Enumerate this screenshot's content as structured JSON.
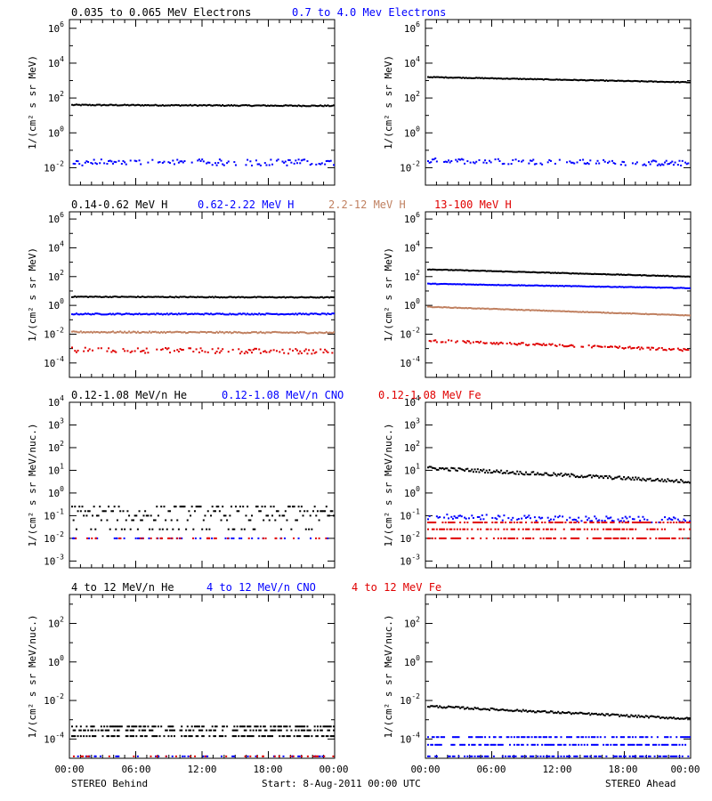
{
  "chart_data": [
    {
      "type": "scatter",
      "panel": "electrons-behind",
      "yscale": "log",
      "ylim_exp": [
        -3,
        6.5
      ],
      "yticks_exp": [
        -2,
        0,
        2,
        4,
        6
      ],
      "ylabel": "1/(cm² s sr MeV)",
      "series": [
        {
          "name": "0.035 to 0.065 MeV Electrons",
          "color": "#000000",
          "log_start": 1.6,
          "log_end": 1.55,
          "noise": 0.03,
          "style": "line"
        },
        {
          "name": "0.7 to 4.0 Mev Electrons",
          "color": "#0000ff",
          "log_start": -1.7,
          "log_end": -1.7,
          "noise": 0.18,
          "style": "scatter"
        }
      ]
    },
    {
      "type": "scatter",
      "panel": "electrons-ahead",
      "yscale": "log",
      "ylim_exp": [
        -3,
        6.5
      ],
      "yticks_exp": [
        -2,
        0,
        2,
        4,
        6
      ],
      "ylabel": "1/(cm² s sr MeV)",
      "series": [
        {
          "color": "#000000",
          "log_start": 3.2,
          "log_end": 2.9,
          "noise": 0.02,
          "style": "line"
        },
        {
          "color": "#0000ff",
          "log_start": -1.6,
          "log_end": -1.75,
          "noise": 0.15,
          "style": "scatter"
        }
      ]
    },
    {
      "type": "scatter",
      "panel": "protons-behind",
      "yscale": "log",
      "ylim_exp": [
        -5,
        6.5
      ],
      "yticks_exp": [
        -4,
        -2,
        0,
        2,
        4,
        6
      ],
      "ylabel": "1/(cm² s sr MeV)",
      "series": [
        {
          "name": "0.14-0.62 MeV H",
          "color": "#000000",
          "log_start": 0.6,
          "log_end": 0.55,
          "noise": 0.03,
          "style": "line"
        },
        {
          "name": "0.62-2.22 MeV H",
          "color": "#0000ff",
          "log_start": -0.6,
          "log_end": -0.6,
          "noise": 0.04,
          "style": "line"
        },
        {
          "name": "2.2-12 MeV H",
          "color": "#c08060",
          "log_start": -1.85,
          "log_end": -1.9,
          "noise": 0.05,
          "style": "line"
        },
        {
          "name": "13-100 MeV H",
          "color": "#e00000",
          "log_start": -3.1,
          "log_end": -3.2,
          "noise": 0.18,
          "style": "scatter"
        }
      ]
    },
    {
      "type": "scatter",
      "panel": "protons-ahead",
      "yscale": "log",
      "ylim_exp": [
        -5,
        6.5
      ],
      "yticks_exp": [
        -4,
        -2,
        0,
        2,
        4,
        6
      ],
      "ylabel": "1/(cm² s sr MeV)",
      "series": [
        {
          "color": "#000000",
          "log_start": 2.5,
          "log_end": 2.0,
          "noise": 0.02,
          "style": "line"
        },
        {
          "color": "#0000ff",
          "log_start": 1.5,
          "log_end": 1.2,
          "noise": 0.02,
          "style": "line"
        },
        {
          "color": "#c08060",
          "log_start": -0.1,
          "log_end": -0.7,
          "noise": 0.02,
          "style": "line"
        },
        {
          "color": "#e00000",
          "log_start": -2.45,
          "log_end": -3.1,
          "noise": 0.08,
          "style": "scatter"
        }
      ]
    },
    {
      "type": "scatter",
      "panel": "heavy-low-behind",
      "yscale": "log",
      "ylim_exp": [
        -3.3,
        4
      ],
      "yticks_exp": [
        -3,
        -2,
        -1,
        0,
        1,
        2,
        3,
        4
      ],
      "ylabel": "1/(cm² s sr MeV/nuc.)",
      "series": [
        {
          "name": "0.12-1.08 MeV/n He",
          "color": "#000000",
          "log_start": -0.9,
          "log_end": -0.9,
          "noise": 0.45,
          "style": "quantized",
          "levels": [
            -1.6,
            -1.2,
            -1.0,
            -0.8,
            -0.6
          ]
        },
        {
          "name": "0.12-1.08 MeV/n CNO",
          "color": "#0000ff",
          "log_start": -2.0,
          "log_end": -2.0,
          "noise": 0.0,
          "style": "sparse"
        },
        {
          "name": "0.12-1.08 MeV Fe",
          "color": "#e00000",
          "log_start": -2.0,
          "log_end": -2.0,
          "noise": 0.0,
          "style": "sparse"
        }
      ]
    },
    {
      "type": "scatter",
      "panel": "heavy-low-ahead",
      "yscale": "log",
      "ylim_exp": [
        -3.3,
        4
      ],
      "yticks_exp": [
        -3,
        -2,
        -1,
        0,
        1,
        2,
        3,
        4
      ],
      "ylabel": "1/(cm² s sr MeV/nuc.)",
      "series": [
        {
          "color": "#000000",
          "log_start": 1.1,
          "log_end": 0.5,
          "noise": 0.07,
          "style": "line"
        },
        {
          "color": "#0000ff",
          "log_start": -1.05,
          "log_end": -1.2,
          "noise": 0.12,
          "style": "scatter"
        },
        {
          "color": "#e00000",
          "log_start": -1.6,
          "log_end": -1.6,
          "noise": 0.0,
          "style": "bands",
          "levels": [
            -1.3,
            -1.6,
            -2.0
          ]
        }
      ]
    },
    {
      "type": "scatter",
      "panel": "heavy-high-behind",
      "yscale": "log",
      "ylim_exp": [
        -5,
        3.5
      ],
      "yticks_exp": [
        -4,
        -2,
        0,
        2
      ],
      "ylabel": "1/(cm² s sr MeV/nuc.)",
      "series": [
        {
          "name": "4 to 12 MeV/n He",
          "color": "#000000",
          "log_start": -3.55,
          "log_end": -3.55,
          "noise": 0.0,
          "style": "bands",
          "levels": [
            -3.35,
            -3.55,
            -3.85
          ]
        },
        {
          "name": "4 to 12 MeV/n CNO",
          "color": "#0000ff",
          "log_start": -4.9,
          "log_end": -4.9,
          "noise": 0.0,
          "style": "sparse"
        },
        {
          "name": "4 to 12 MeV Fe",
          "color": "#e00000",
          "log_start": -4.9,
          "log_end": -4.9,
          "noise": 0.0,
          "style": "sparse"
        }
      ]
    },
    {
      "type": "scatter",
      "panel": "heavy-high-ahead",
      "yscale": "log",
      "ylim_exp": [
        -5,
        3.5
      ],
      "yticks_exp": [
        -4,
        -2,
        0,
        2
      ],
      "ylabel": "1/(cm² s sr MeV/nuc.)",
      "series": [
        {
          "color": "#000000",
          "log_start": -2.3,
          "log_end": -2.95,
          "noise": 0.05,
          "style": "line"
        },
        {
          "color": "#0000ff",
          "log_start": -3.9,
          "log_end": -3.9,
          "noise": 0.0,
          "style": "bands",
          "levels": [
            -3.9,
            -4.3,
            -4.9
          ]
        }
      ]
    }
  ],
  "x_axis": {
    "ticks": [
      "00:00",
      "06:00",
      "12:00",
      "18:00",
      "00:00"
    ]
  },
  "labels": {
    "left_spacecraft": "STEREO Behind",
    "start": "Start:  8-Aug-2011 00:00 UTC",
    "right_spacecraft": "STEREO Ahead"
  },
  "legends": {
    "row1": [
      "0.035 to 0.065 MeV Electrons",
      "0.7 to 4.0 Mev Electrons"
    ],
    "row2": [
      "0.14-0.62 MeV H",
      "0.62-2.22 MeV H",
      "2.2-12 MeV H",
      "13-100 MeV H"
    ],
    "row3": [
      "0.12-1.08 MeV/n He",
      "0.12-1.08 MeV/n CNO",
      "0.12-1.08 MeV Fe"
    ],
    "row4": [
      "4 to 12 MeV/n He",
      "4 to 12 MeV/n CNO",
      "4 to 12 MeV Fe"
    ]
  },
  "colors": {
    "black": "#000000",
    "blue": "#0000ff",
    "tan": "#c08060",
    "red": "#e00000"
  }
}
